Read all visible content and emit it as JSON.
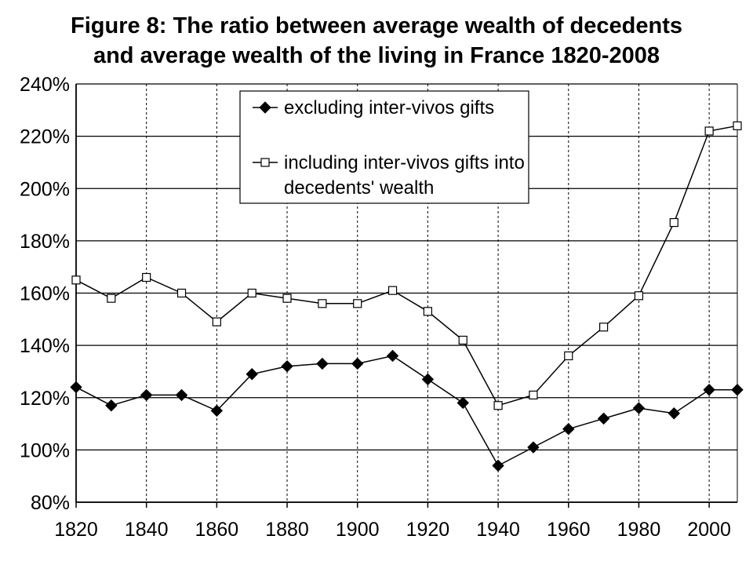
{
  "chart_data": {
    "type": "line",
    "title_line1": "Figure 8: The ratio between average wealth of decedents",
    "title_line2": "and average wealth of the living in France 1820-2008",
    "xlabel": "",
    "ylabel": "",
    "xlim": [
      1820,
      2008
    ],
    "ylim": [
      80,
      240
    ],
    "x_ticks": [
      1820,
      1840,
      1860,
      1880,
      1900,
      1920,
      1940,
      1960,
      1980,
      2000
    ],
    "x_tick_labels": [
      "1820",
      "1840",
      "1860",
      "1880",
      "1900",
      "1920",
      "1940",
      "1960",
      "1980",
      "2000"
    ],
    "y_ticks": [
      80,
      100,
      120,
      140,
      160,
      180,
      200,
      220,
      240
    ],
    "y_tick_labels": [
      "80%",
      "100%",
      "120%",
      "140%",
      "160%",
      "180%",
      "200%",
      "220%",
      "240%"
    ],
    "grid": "horizontal solid, vertical dashed",
    "legend_position": "top-center",
    "x": [
      1820,
      1830,
      1840,
      1850,
      1860,
      1870,
      1880,
      1890,
      1900,
      1910,
      1920,
      1930,
      1940,
      1950,
      1960,
      1970,
      1980,
      1990,
      2000,
      2008
    ],
    "series": [
      {
        "name": "excluding inter-vivos gifts",
        "marker": "diamond-filled",
        "color": "#000000",
        "values": [
          124,
          117,
          121,
          121,
          115,
          129,
          132,
          133,
          133,
          136,
          127,
          118,
          94,
          101,
          108,
          112,
          116,
          114,
          123,
          123
        ]
      },
      {
        "name": "including inter-vivos gifts into decedents' wealth",
        "name_lines": [
          "including inter-vivos gifts into",
          "decedents' wealth"
        ],
        "marker": "square-open",
        "color": "#000000",
        "values": [
          165,
          158,
          166,
          160,
          149,
          160,
          158,
          156,
          156,
          161,
          153,
          142,
          117,
          121,
          136,
          147,
          159,
          187,
          222,
          224
        ]
      }
    ]
  }
}
